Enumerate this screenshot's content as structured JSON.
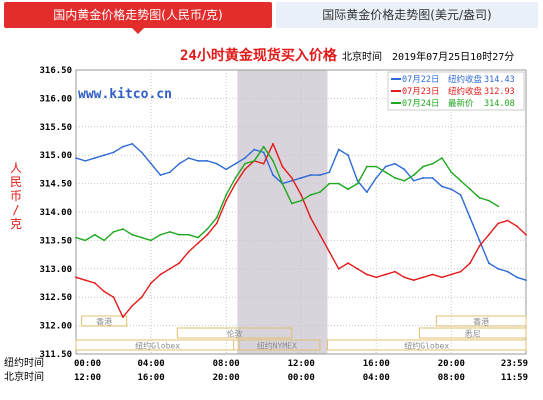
{
  "tabs": [
    {
      "label": "国内黄金价格走势图(人民币/克)",
      "active": true
    },
    {
      "label": "国际黄金价格走势图(美元/盎司)",
      "active": false
    }
  ],
  "chart_data": {
    "type": "line",
    "title": "24小时黄金现货买入价格",
    "watermark": "www.kitco.cn",
    "timezone_label": "北京时间",
    "timestamp": "2019年07月25日10时27分",
    "ylabel": "人民币/克",
    "ylim": [
      311.5,
      316.5
    ],
    "y_ticks": [
      "311.50",
      "312.00",
      "312.50",
      "313.00",
      "313.50",
      "314.00",
      "314.50",
      "315.00",
      "315.50",
      "316.00",
      "316.50"
    ],
    "x_row_labels": [
      "纽约时间",
      "北京时间"
    ],
    "x_ticks_ny": [
      "00:00",
      "04:00",
      "08:00",
      "12:00",
      "16:00",
      "20:00",
      "23:59"
    ],
    "x_ticks_bj": [
      "12:00",
      "16:00",
      "20:00",
      "00:00",
      "04:00",
      "08:00",
      "11:59"
    ],
    "x_range_hours": [
      0,
      23.98
    ],
    "shaded_region_hours": [
      8.6,
      13.4
    ],
    "markets": [
      {
        "name": "香港",
        "start": 0.3,
        "end": 2.7
      },
      {
        "name": "伦敦",
        "start": 5.4,
        "end": 11.5
      },
      {
        "name": "纽约Globex",
        "start": 0.0,
        "end": 8.7
      },
      {
        "name": "纽约NYMEX",
        "start": 8.4,
        "end": 13.0
      },
      {
        "name": "纽约Globex",
        "start": 13.4,
        "end": 23.98
      },
      {
        "name": "香港",
        "start": 19.2,
        "end": 23.98
      },
      {
        "name": "悉尼",
        "start": 18.3,
        "end": 23.98
      }
    ],
    "series": [
      {
        "name": "07月22日",
        "legend_label": "纽约收盘",
        "legend_value": "314.43",
        "color": "#2e6bd6",
        "x": [
          0,
          0.5,
          1,
          1.5,
          2,
          2.5,
          3,
          3.5,
          4,
          4.5,
          5,
          5.5,
          6,
          6.5,
          7,
          7.5,
          8,
          8.5,
          9,
          9.5,
          10,
          10.5,
          11,
          11.5,
          12,
          12.5,
          13,
          13.5,
          14,
          14.5,
          15,
          15.5,
          16,
          16.5,
          17,
          17.5,
          18,
          18.5,
          19,
          19.5,
          20,
          20.5,
          21,
          21.5,
          22,
          22.5,
          23,
          23.5,
          23.98
        ],
        "values": [
          314.95,
          314.9,
          314.95,
          315,
          315.05,
          315.15,
          315.2,
          315.05,
          314.85,
          314.65,
          314.7,
          314.85,
          314.95,
          314.9,
          314.9,
          314.85,
          314.75,
          314.85,
          314.95,
          315.1,
          315.05,
          314.65,
          314.5,
          314.55,
          314.6,
          314.65,
          314.65,
          314.7,
          315.1,
          315,
          314.55,
          314.35,
          314.6,
          314.8,
          314.85,
          314.75,
          314.55,
          314.6,
          314.6,
          314.45,
          314.4,
          314.3,
          313.9,
          313.5,
          313.1,
          313.0,
          312.95,
          312.85,
          312.8
        ]
      },
      {
        "name": "07月23日",
        "legend_label": "纽约收盘",
        "legend_value": "312.93",
        "color": "#e31a1a",
        "x": [
          0,
          0.5,
          1,
          1.5,
          2,
          2.5,
          3,
          3.5,
          4,
          4.5,
          5,
          5.5,
          6,
          6.5,
          7,
          7.5,
          8,
          8.5,
          9,
          9.5,
          10,
          10.5,
          11,
          11.5,
          12,
          12.5,
          13,
          13.5,
          14,
          14.5,
          15,
          15.5,
          16,
          16.5,
          17,
          17.5,
          18,
          18.5,
          19,
          19.5,
          20,
          20.5,
          21,
          21.5,
          22,
          22.5,
          23,
          23.5,
          23.98
        ],
        "values": [
          312.85,
          312.8,
          312.75,
          312.6,
          312.5,
          312.15,
          312.35,
          312.5,
          312.75,
          312.9,
          313.0,
          313.1,
          313.3,
          313.45,
          313.6,
          313.8,
          314.2,
          314.5,
          314.75,
          314.9,
          314.85,
          315.2,
          314.8,
          314.6,
          314.3,
          313.9,
          313.6,
          313.3,
          313.0,
          313.1,
          313.0,
          312.9,
          312.85,
          312.9,
          312.95,
          312.85,
          312.8,
          312.85,
          312.9,
          312.85,
          312.9,
          312.95,
          313.1,
          313.4,
          313.6,
          313.8,
          313.85,
          313.75,
          313.6
        ]
      },
      {
        "name": "07月24日",
        "legend_label": "最新价",
        "legend_value": "314.08",
        "color": "#1fa81f",
        "x": [
          0,
          0.5,
          1,
          1.5,
          2,
          2.5,
          3,
          3.5,
          4,
          4.5,
          5,
          5.5,
          6,
          6.5,
          7,
          7.5,
          8,
          8.5,
          9,
          9.5,
          10,
          10.5,
          11,
          11.5,
          12,
          12.5,
          13,
          13.5,
          14,
          14.5,
          15,
          15.5,
          16,
          16.5,
          17,
          17.5,
          18,
          18.5,
          19,
          19.5,
          20,
          20.5,
          21,
          21.5,
          22,
          22.5
        ],
        "values": [
          313.55,
          313.5,
          313.6,
          313.5,
          313.65,
          313.7,
          313.6,
          313.55,
          313.5,
          313.6,
          313.65,
          313.6,
          313.6,
          313.55,
          313.7,
          313.9,
          314.3,
          314.6,
          314.85,
          314.9,
          315.15,
          314.9,
          314.5,
          314.15,
          314.2,
          314.3,
          314.35,
          314.5,
          314.5,
          314.4,
          314.5,
          314.8,
          314.8,
          314.7,
          314.6,
          314.55,
          314.65,
          314.8,
          314.85,
          314.95,
          314.7,
          314.55,
          314.4,
          314.25,
          314.2,
          314.1
        ]
      }
    ],
    "grid": true,
    "legend_position": "top-right"
  }
}
